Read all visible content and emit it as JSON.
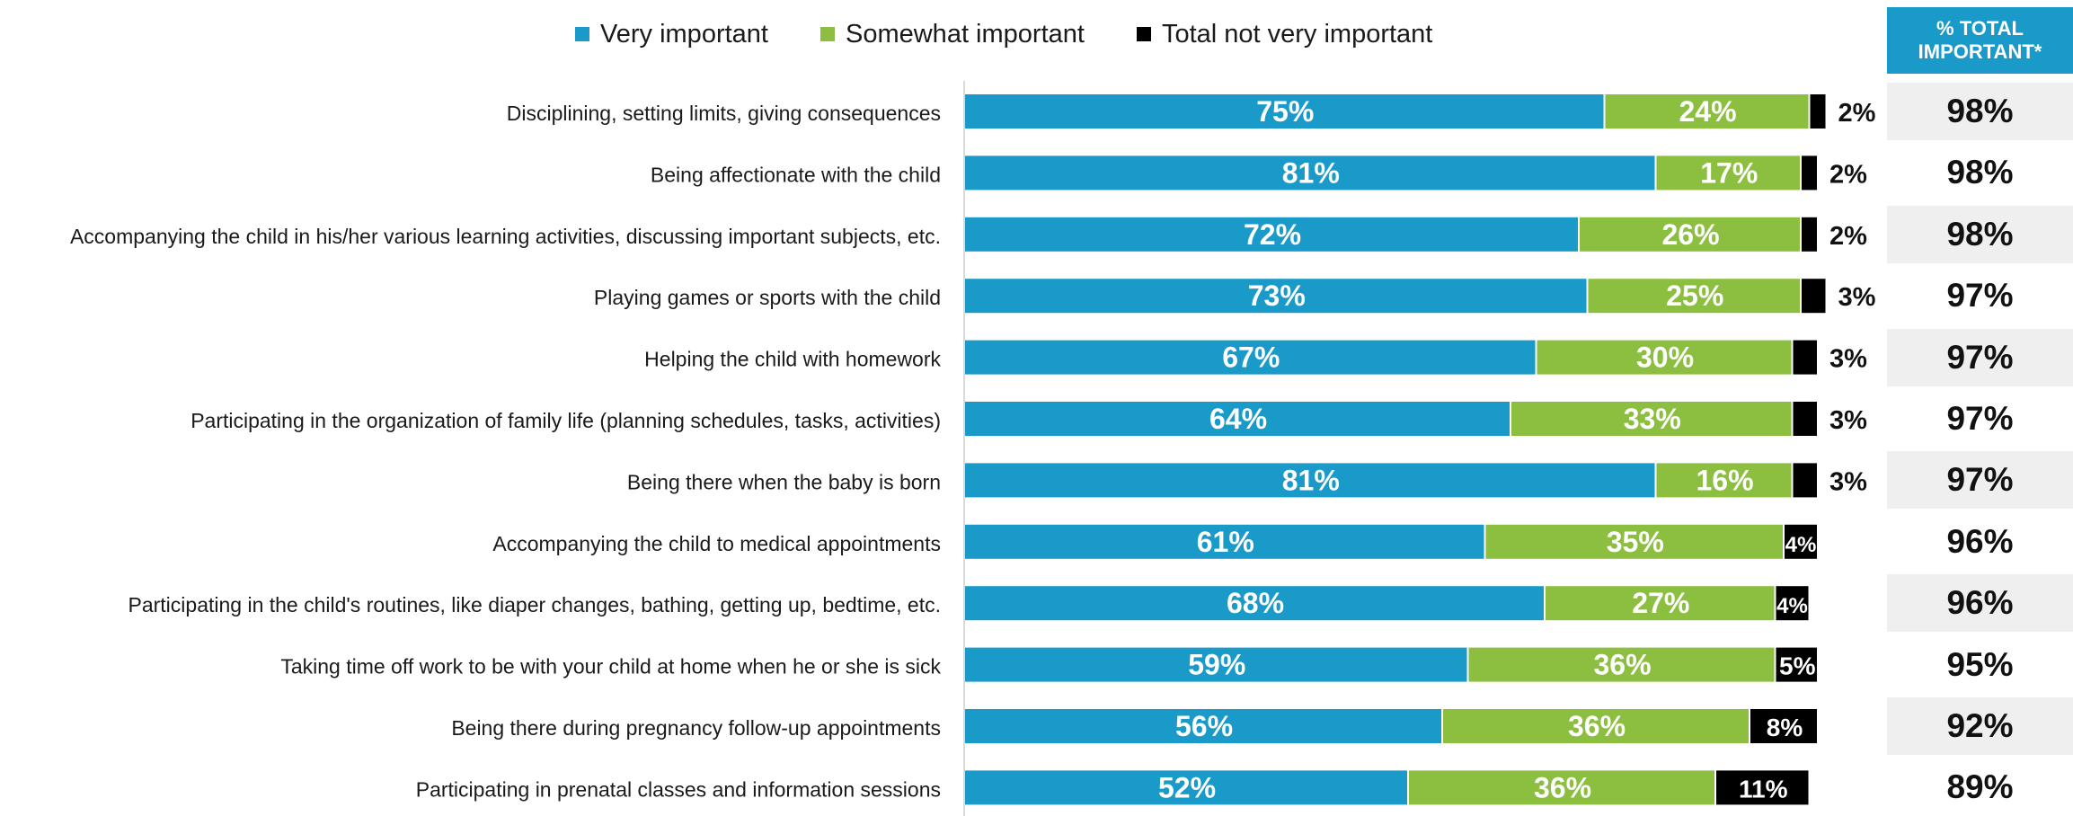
{
  "legend": [
    {
      "label": "Very important",
      "color": "#1a9ac9"
    },
    {
      "label": "Somewhat important",
      "color": "#8cbf3f"
    },
    {
      "label": "Total not very important",
      "color": "#000000"
    }
  ],
  "total_header": {
    "line1": "% TOTAL",
    "line2": "IMPORTANT*"
  },
  "chart_data": {
    "type": "bar",
    "orientation": "horizontal",
    "stacked": true,
    "xlim": [
      0,
      100
    ],
    "categories": [
      "Disciplining, setting limits, giving consequences",
      "Being affectionate with the child",
      "Accompanying the child in his/her various learning activities, discussing important subjects, etc.",
      "Playing games or sports with the child",
      "Helping the child with homework",
      "Participating in the organization of family life (planning schedules, tasks, activities)",
      "Being there when the baby is born",
      "Accompanying the child to medical appointments",
      "Participating in the child's routines, like diaper changes, bathing, getting up, bedtime, etc.",
      "Taking time off work to be with your child at home when he or she is sick",
      "Being there during pregnancy follow-up appointments",
      "Participating in prenatal classes and information sessions"
    ],
    "series": [
      {
        "name": "Very important",
        "color": "#1a9ac9",
        "values": [
          75,
          81,
          72,
          73,
          67,
          64,
          81,
          61,
          68,
          59,
          56,
          52
        ]
      },
      {
        "name": "Somewhat important",
        "color": "#8cbf3f",
        "values": [
          24,
          17,
          26,
          25,
          30,
          33,
          16,
          35,
          27,
          36,
          36,
          36
        ]
      },
      {
        "name": "Total not very important",
        "color": "#000000",
        "values": [
          2,
          2,
          2,
          3,
          3,
          3,
          3,
          4,
          4,
          5,
          8,
          11
        ]
      }
    ],
    "total_important": [
      98,
      98,
      98,
      97,
      97,
      97,
      97,
      96,
      96,
      95,
      92,
      89
    ]
  }
}
